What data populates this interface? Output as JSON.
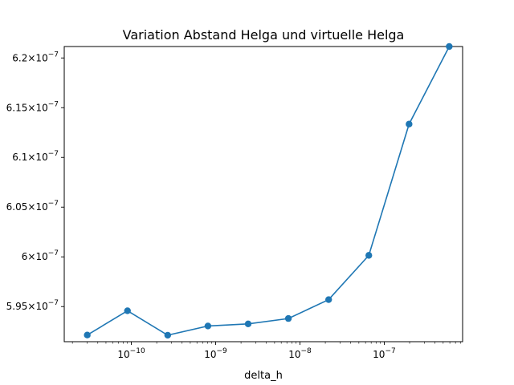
{
  "chart_data": {
    "type": "line",
    "title": "Variation Abstand Helga und virtuelle Helga",
    "xlabel": "delta_h",
    "ylabel": "",
    "xscale": "log",
    "grid": false,
    "legend": "none",
    "xlim": [
      1.6e-11,
      8.5e-07
    ],
    "ylim": [
      5.9147e-07,
      6.2115e-07
    ],
    "x_ticks": [
      {
        "value": 1e-10,
        "base": "10",
        "exp": "−10"
      },
      {
        "value": 1e-09,
        "base": "10",
        "exp": "−9"
      },
      {
        "value": 1e-08,
        "base": "10",
        "exp": "−8"
      },
      {
        "value": 1e-07,
        "base": "10",
        "exp": "−7"
      }
    ],
    "y_ticks": [
      {
        "value": 5.95e-07,
        "mantissa": "5.95",
        "exp": "−7"
      },
      {
        "value": 6e-07,
        "mantissa": "6",
        "exp": "−7"
      },
      {
        "value": 6.05e-07,
        "mantissa": "6.05",
        "exp": "−7"
      },
      {
        "value": 6.1e-07,
        "mantissa": "6.1",
        "exp": "−7"
      },
      {
        "value": 6.15e-07,
        "mantissa": "6.15",
        "exp": "−7"
      },
      {
        "value": 6.2e-07,
        "mantissa": "6.2",
        "exp": "−7"
      }
    ],
    "series": [
      {
        "color": "#1f77b4",
        "marker": "circle",
        "x": [
          3e-11,
          9e-11,
          2.7e-10,
          8.1e-10,
          2.43e-09,
          7.29e-09,
          2.19e-08,
          6.56e-08,
          1.97e-07,
          5.9e-07
        ],
        "y": [
          5.9214e-07,
          5.9458e-07,
          5.9212e-07,
          5.9305e-07,
          5.9326e-07,
          5.938e-07,
          5.957e-07,
          6.0015e-07,
          6.1335e-07,
          6.2115e-07
        ]
      }
    ]
  }
}
